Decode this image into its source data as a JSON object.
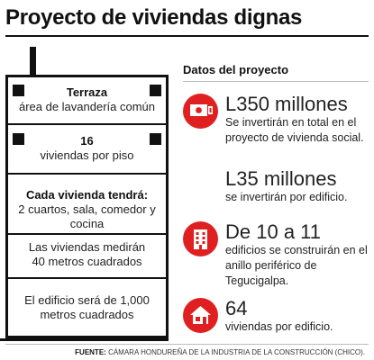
{
  "title": "Proyecto de viviendas dignas",
  "building": {
    "floors": [
      {
        "head": "Terraza",
        "text": "área de lavandería común"
      },
      {
        "head": "16",
        "text": "viviendas por piso"
      },
      {
        "head": "Cada vivienda tendrá:",
        "text": "2 cuartos, sala, comedor y cocina"
      },
      {
        "head": "",
        "text": "Las viviendas medirán 40 metros cuadrados"
      },
      {
        "head": "",
        "text": "El edificio será de 1,000 metros cuadrados"
      }
    ]
  },
  "details": {
    "title": "Datos del proyecto",
    "items": [
      {
        "icon": "money-icon",
        "big": "L350 millones",
        "text": "Se invertirán en total en el proyecto de vivienda social."
      },
      {
        "icon": "",
        "big": "L35 millones",
        "text": "se invertirán por edificio."
      },
      {
        "icon": "building-icon",
        "big": "De 10 a 11",
        "text": "edificios se construirán en el anillo periférico de Tegucigalpa."
      },
      {
        "icon": "house-icon",
        "big": "64",
        "text": "viviendas por edificio."
      }
    ]
  },
  "source": {
    "label": "FUENTE:",
    "text": "CÁMARA HONDUREÑA DE LA INDUSTRIA DE LA CONSTRUCCIÓN (CHICO)."
  },
  "colors": {
    "accent": "#e02020",
    "ink": "#111111"
  }
}
